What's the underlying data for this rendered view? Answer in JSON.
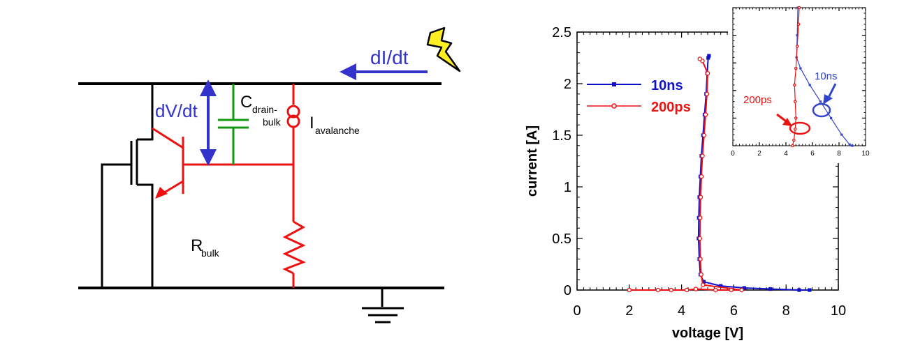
{
  "circuit": {
    "label_didt": "dI/dt",
    "label_dvdt": "dV/dt",
    "label_c_main": "C",
    "label_c_sub1": "drain-",
    "label_c_sub2": "bulk",
    "label_i_main": "I",
    "label_i_sub": "avalanche",
    "label_r_main": "R",
    "label_r_sub": "bulk",
    "colors": {
      "wire": "#000000",
      "red": "#ee1111",
      "blue": "#3333cc",
      "green": "#119911",
      "bolt": "#ffee22"
    }
  },
  "chart_data": [
    {
      "type": "line",
      "xlabel": "voltage [V]",
      "ylabel": "current [A]",
      "xlim": [
        0,
        10
      ],
      "ylim": [
        0,
        2.5
      ],
      "xticks": [
        "0",
        "2",
        "4",
        "6",
        "8",
        "10"
      ],
      "yticks": [
        "0",
        "0.5",
        "1",
        "1.5",
        "2",
        "2.5"
      ],
      "legend_position": "top-left",
      "series": [
        {
          "name": "10ns",
          "color": "#1111cc",
          "marker": "square",
          "points": [
            [
              8.9,
              0
            ],
            [
              8.5,
              0
            ],
            [
              7.4,
              0.01
            ],
            [
              6.4,
              0.02
            ],
            [
              5.5,
              0.04
            ],
            [
              4.85,
              0.08
            ],
            [
              4.72,
              0.15
            ],
            [
              4.68,
              0.3
            ],
            [
              4.65,
              0.5
            ],
            [
              4.66,
              0.7
            ],
            [
              4.68,
              0.9
            ],
            [
              4.72,
              1.1
            ],
            [
              4.76,
              1.3
            ],
            [
              4.82,
              1.5
            ],
            [
              4.88,
              1.7
            ],
            [
              4.94,
              1.9
            ],
            [
              4.98,
              2.1
            ],
            [
              5.02,
              2.25
            ],
            [
              5.05,
              2.27
            ]
          ]
        },
        {
          "name": "200ps",
          "color": "#ee1111",
          "marker": "circle",
          "points": [
            [
              2.0,
              0
            ],
            [
              3.1,
              0
            ],
            [
              3.6,
              0
            ],
            [
              4.2,
              0
            ],
            [
              4.55,
              0.01
            ],
            [
              5.3,
              0
            ],
            [
              5.9,
              0
            ],
            [
              6.3,
              0
            ],
            [
              4.82,
              0.05
            ],
            [
              4.75,
              0.15
            ],
            [
              4.72,
              0.3
            ],
            [
              4.7,
              0.5
            ],
            [
              4.71,
              0.7
            ],
            [
              4.73,
              0.9
            ],
            [
              4.76,
              1.1
            ],
            [
              4.8,
              1.3
            ],
            [
              4.86,
              1.5
            ],
            [
              4.92,
              1.7
            ],
            [
              4.97,
              1.9
            ],
            [
              5.0,
              2.1
            ],
            [
              4.8,
              2.22
            ],
            [
              4.7,
              2.24
            ]
          ]
        }
      ]
    },
    {
      "type": "line",
      "xlim": [
        0,
        10
      ],
      "ylim": [
        0,
        2.5
      ],
      "xticks": [
        "0",
        "2",
        "4",
        "6",
        "8",
        "10"
      ],
      "annotations": [
        "10ns",
        "200ps"
      ],
      "series": [
        {
          "name": "10ns",
          "color": "#3344cc",
          "marker": "square",
          "points": [
            [
              9.0,
              0
            ],
            [
              8.8,
              0.02
            ],
            [
              8.2,
              0.2
            ],
            [
              7.4,
              0.5
            ],
            [
              6.6,
              0.8
            ],
            [
              5.8,
              1.1
            ],
            [
              5.1,
              1.4
            ],
            [
              4.8,
              1.6
            ],
            [
              4.85,
              2.0
            ],
            [
              4.9,
              2.5
            ]
          ]
        },
        {
          "name": "200ps",
          "color": "#ee1111",
          "marker": "circle",
          "points": [
            [
              4.5,
              0
            ],
            [
              4.6,
              0.1
            ],
            [
              4.7,
              0.3
            ],
            [
              4.75,
              0.5
            ],
            [
              4.7,
              0.8
            ],
            [
              4.65,
              1.1
            ],
            [
              4.75,
              1.4
            ],
            [
              4.85,
              1.8
            ],
            [
              4.95,
              2.2
            ],
            [
              5.0,
              2.5
            ]
          ]
        }
      ]
    }
  ]
}
